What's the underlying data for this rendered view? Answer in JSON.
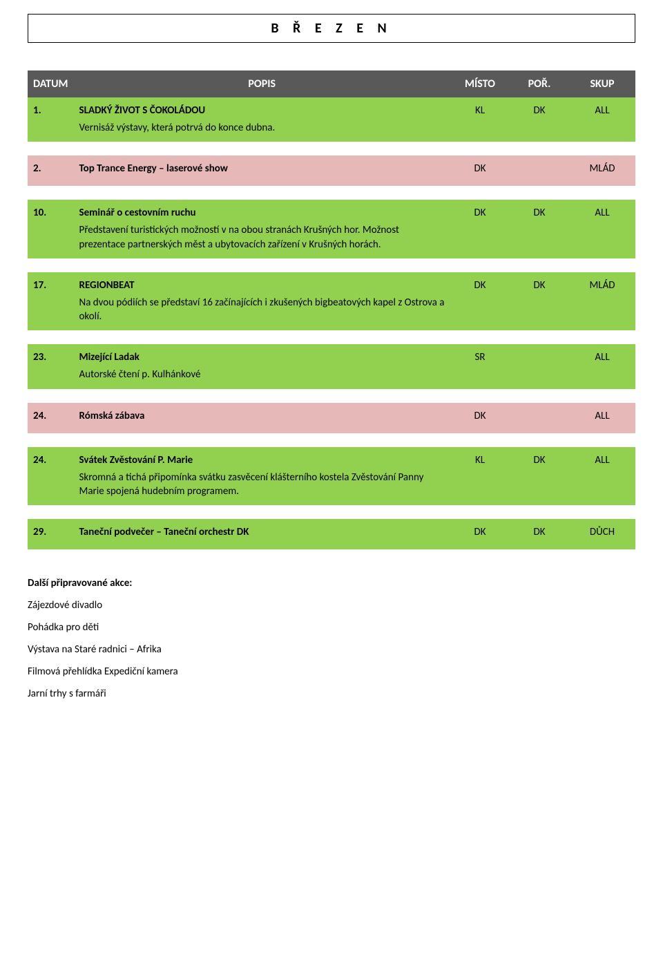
{
  "page": {
    "title": "B Ř E Z E N",
    "background_color": "#ffffff",
    "text_color": "#000000",
    "title_fontsize": 20,
    "body_fontsize": 15
  },
  "table": {
    "header_bg": "#595959",
    "header_fg": "#ffffff",
    "green_bg": "#92d050",
    "pink_bg": "#e6b8b7",
    "columns": {
      "datum": "DATUM",
      "popis": "POPIS",
      "misto": "MÍSTO",
      "por": "POŘ.",
      "skup": "SKUP"
    },
    "rows": [
      {
        "num": "1.",
        "title": "SLADKÝ ŽIVOT S ČOKOLÁDOU",
        "body": "Vernisáž výstavy, která potrvá do konce dubna.",
        "misto": "KL",
        "por": "DK",
        "skup": "ALL",
        "color": "green"
      },
      {
        "num": "2.",
        "title": "Top Trance Energy – laserové show",
        "body": "",
        "misto": "DK",
        "por": "",
        "skup": "MLÁD",
        "color": "pink"
      },
      {
        "num": "10.",
        "title": "Seminář o cestovním ruchu",
        "body": "Představení turistických možností v na obou stranách Krušných hor. Možnost prezentace partnerských měst a ubytovacích zařízení v Krušných horách.",
        "misto": "DK",
        "por": "DK",
        "skup": "ALL",
        "color": "green"
      },
      {
        "num": "17.",
        "title": "REGIONBEAT",
        "body": "Na dvou pódiích se představí 16 začínajících i zkušených bigbeatových kapel z Ostrova a okolí.",
        "misto": "DK",
        "por": "DK",
        "skup": "MLÁD",
        "color": "green"
      },
      {
        "num": "23.",
        "title": "Mizející Ladak",
        "body": "Autorské čtení p. Kulhánkové",
        "misto": "SR",
        "por": "",
        "skup": "ALL",
        "color": "green"
      },
      {
        "num": "24.",
        "title": "Rómská zábava",
        "body": "",
        "misto": "DK",
        "por": "",
        "skup": "ALL",
        "color": "pink"
      },
      {
        "num": "24.",
        "title": "Svátek Zvěstování P. Marie",
        "body": "Skromná a tichá připomínka svátku zasvěcení klášterního kostela Zvěstování Panny Marie spojená hudebním programem.",
        "misto": "KL",
        "por": "DK",
        "skup": "ALL",
        "color": "green"
      },
      {
        "num": "29.",
        "title": "Taneční podvečer – Taneční orchestr DK",
        "body": "",
        "misto": "DK",
        "por": "DK",
        "skup": "DŮCH",
        "color": "green"
      }
    ]
  },
  "extras": {
    "heading": "Další připravované akce:",
    "items": [
      "Zájezdové divadlo",
      "Pohádka pro děti",
      "Výstava na Staré radnici – Afrika",
      "Filmová přehlídka Expediční kamera",
      "Jarní trhy s farmáři"
    ]
  }
}
